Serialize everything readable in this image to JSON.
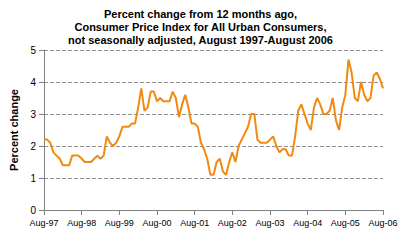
{
  "chart_data": {
    "type": "line",
    "title": "Percent change from 12 months ago,\nConsumer Price Index for All Urban Consumers,\nnot seasonally adjusted, August 1997-August 2006",
    "y_label": "Percent change",
    "categories": [
      "Aug-97",
      null,
      null,
      null,
      null,
      null,
      null,
      null,
      null,
      null,
      null,
      null,
      "Aug-98",
      null,
      null,
      null,
      null,
      null,
      null,
      null,
      null,
      null,
      null,
      null,
      "Aug-99",
      null,
      null,
      null,
      null,
      null,
      null,
      null,
      null,
      null,
      null,
      null,
      "Aug-00",
      null,
      null,
      null,
      null,
      null,
      null,
      null,
      null,
      null,
      null,
      null,
      "Aug-01",
      null,
      null,
      null,
      null,
      null,
      null,
      null,
      null,
      null,
      null,
      null,
      "Aug-02",
      null,
      null,
      null,
      null,
      null,
      null,
      null,
      null,
      null,
      null,
      null,
      "Aug-03",
      null,
      null,
      null,
      null,
      null,
      null,
      null,
      null,
      null,
      null,
      null,
      "Aug-04",
      null,
      null,
      null,
      null,
      null,
      null,
      null,
      null,
      null,
      null,
      null,
      "Aug-05",
      null,
      null,
      null,
      null,
      null,
      null,
      null,
      null,
      null,
      null,
      null,
      "Aug-06"
    ],
    "values": [
      2.2,
      2.2,
      2.1,
      1.8,
      1.7,
      1.6,
      1.4,
      1.4,
      1.4,
      1.7,
      1.7,
      1.7,
      1.6,
      1.5,
      1.5,
      1.5,
      1.6,
      1.7,
      1.6,
      1.7,
      2.3,
      2.1,
      2.0,
      2.1,
      2.3,
      2.6,
      2.6,
      2.6,
      2.7,
      2.7,
      3.2,
      3.8,
      3.1,
      3.2,
      3.7,
      3.7,
      3.4,
      3.5,
      3.4,
      3.4,
      3.4,
      3.7,
      3.5,
      2.9,
      3.3,
      3.6,
      3.2,
      2.7,
      2.7,
      2.6,
      2.1,
      1.9,
      1.6,
      1.1,
      1.1,
      1.5,
      1.6,
      1.2,
      1.1,
      1.5,
      1.8,
      1.5,
      2.0,
      2.2,
      2.4,
      2.6,
      3.0,
      3.0,
      2.2,
      2.1,
      2.1,
      2.1,
      2.2,
      2.3,
      2.0,
      1.8,
      1.9,
      1.9,
      1.7,
      1.7,
      2.3,
      3.1,
      3.3,
      3.0,
      2.7,
      2.5,
      3.2,
      3.5,
      3.3,
      3.0,
      3.0,
      3.1,
      3.5,
      2.8,
      2.5,
      3.2,
      3.6,
      4.7,
      4.3,
      3.5,
      3.4,
      4.0,
      3.6,
      3.4,
      3.5,
      4.2,
      4.3,
      4.1,
      3.8
    ],
    "color": "#f08a12",
    "ylim": [
      0,
      5
    ],
    "yticks": [
      0,
      1,
      2,
      3,
      4,
      5
    ],
    "grid": true
  }
}
